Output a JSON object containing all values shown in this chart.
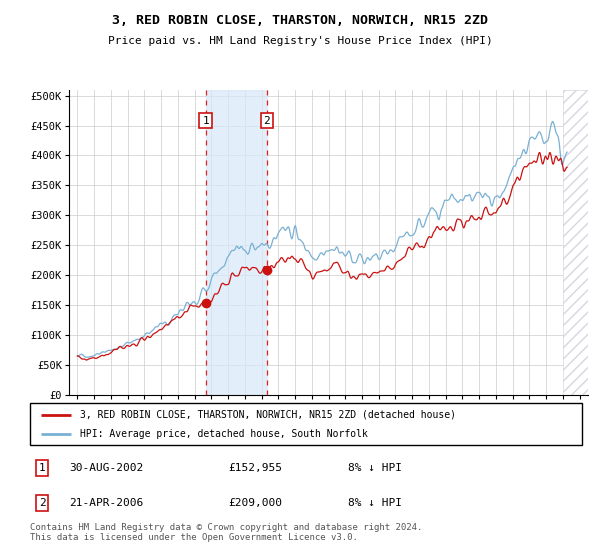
{
  "title": "3, RED ROBIN CLOSE, THARSTON, NORWICH, NR15 2ZD",
  "subtitle": "Price paid vs. HM Land Registry's House Price Index (HPI)",
  "yticks": [
    0,
    50000,
    100000,
    150000,
    200000,
    250000,
    300000,
    350000,
    400000,
    450000,
    500000
  ],
  "ytick_labels": [
    "£0",
    "£50K",
    "£100K",
    "£150K",
    "£200K",
    "£250K",
    "£300K",
    "£350K",
    "£400K",
    "£450K",
    "£500K"
  ],
  "xlim_start": 1994.5,
  "xlim_end": 2025.5,
  "ylim_max": 510000,
  "transaction1_date": 2002.66,
  "transaction1_price": 152955,
  "transaction2_date": 2006.31,
  "transaction2_price": 209000,
  "shade_color": "#d6e8f7",
  "shade_alpha": 0.7,
  "vline_color": "#dd2222",
  "hpi_line_color": "#7ab0d4",
  "price_line_color": "#cc1111",
  "legend_label_price": "3, RED ROBIN CLOSE, THARSTON, NORWICH, NR15 2ZD (detached house)",
  "legend_label_hpi": "HPI: Average price, detached house, South Norfolk",
  "footer": "Contains HM Land Registry data © Crown copyright and database right 2024.\nThis data is licensed under the Open Government Licence v3.0.",
  "xticks": [
    1995,
    1996,
    1997,
    1998,
    1999,
    2000,
    2001,
    2002,
    2003,
    2004,
    2005,
    2006,
    2007,
    2008,
    2009,
    2010,
    2011,
    2012,
    2013,
    2014,
    2015,
    2016,
    2017,
    2018,
    2019,
    2020,
    2021,
    2022,
    2023,
    2024,
    2025
  ],
  "hpi_keypoints": [
    [
      1995.0,
      68000
    ],
    [
      1995.5,
      65000
    ],
    [
      1996.0,
      67000
    ],
    [
      1996.5,
      70000
    ],
    [
      1997.0,
      75000
    ],
    [
      1997.5,
      83000
    ],
    [
      1998.0,
      88000
    ],
    [
      1998.5,
      92000
    ],
    [
      1999.0,
      97000
    ],
    [
      1999.5,
      107000
    ],
    [
      2000.0,
      118000
    ],
    [
      2000.5,
      128000
    ],
    [
      2001.0,
      138000
    ],
    [
      2001.5,
      152000
    ],
    [
      2002.0,
      162000
    ],
    [
      2002.5,
      177000
    ],
    [
      2003.0,
      192000
    ],
    [
      2003.5,
      210000
    ],
    [
      2004.0,
      228000
    ],
    [
      2004.5,
      245000
    ],
    [
      2005.0,
      248000
    ],
    [
      2005.5,
      247000
    ],
    [
      2006.0,
      252000
    ],
    [
      2006.5,
      260000
    ],
    [
      2007.0,
      270000
    ],
    [
      2007.5,
      273000
    ],
    [
      2008.0,
      268000
    ],
    [
      2008.5,
      250000
    ],
    [
      2009.0,
      233000
    ],
    [
      2009.5,
      228000
    ],
    [
      2010.0,
      240000
    ],
    [
      2010.5,
      244000
    ],
    [
      2011.0,
      237000
    ],
    [
      2011.5,
      232000
    ],
    [
      2012.0,
      228000
    ],
    [
      2012.5,
      225000
    ],
    [
      2013.0,
      228000
    ],
    [
      2013.5,
      235000
    ],
    [
      2014.0,
      248000
    ],
    [
      2014.5,
      262000
    ],
    [
      2015.0,
      275000
    ],
    [
      2015.5,
      288000
    ],
    [
      2016.0,
      300000
    ],
    [
      2016.5,
      310000
    ],
    [
      2017.0,
      318000
    ],
    [
      2017.5,
      325000
    ],
    [
      2018.0,
      328000
    ],
    [
      2018.5,
      330000
    ],
    [
      2019.0,
      332000
    ],
    [
      2019.5,
      335000
    ],
    [
      2020.0,
      337000
    ],
    [
      2020.5,
      348000
    ],
    [
      2021.0,
      368000
    ],
    [
      2021.5,
      395000
    ],
    [
      2022.0,
      420000
    ],
    [
      2022.5,
      437000
    ],
    [
      2023.0,
      440000
    ],
    [
      2023.5,
      430000
    ],
    [
      2024.0,
      418000
    ],
    [
      2024.25,
      415000
    ]
  ],
  "price_keypoints": [
    [
      1995.0,
      63000
    ],
    [
      1995.5,
      60000
    ],
    [
      1996.0,
      63000
    ],
    [
      1996.5,
      66000
    ],
    [
      1997.0,
      71000
    ],
    [
      1997.5,
      78000
    ],
    [
      1998.0,
      83000
    ],
    [
      1998.5,
      87000
    ],
    [
      1999.0,
      92000
    ],
    [
      1999.5,
      101000
    ],
    [
      2000.0,
      111000
    ],
    [
      2000.5,
      121000
    ],
    [
      2001.0,
      131000
    ],
    [
      2001.5,
      143000
    ],
    [
      2002.0,
      152000
    ],
    [
      2002.66,
      152955
    ],
    [
      2003.0,
      158000
    ],
    [
      2003.5,
      175000
    ],
    [
      2004.0,
      193000
    ],
    [
      2004.5,
      207000
    ],
    [
      2005.0,
      210000
    ],
    [
      2005.5,
      212000
    ],
    [
      2006.31,
      209000
    ],
    [
      2006.5,
      215000
    ],
    [
      2007.0,
      224000
    ],
    [
      2007.5,
      238000
    ],
    [
      2008.0,
      232000
    ],
    [
      2008.5,
      215000
    ],
    [
      2009.0,
      202000
    ],
    [
      2009.5,
      199000
    ],
    [
      2010.0,
      208000
    ],
    [
      2010.5,
      212000
    ],
    [
      2011.0,
      207000
    ],
    [
      2011.5,
      203000
    ],
    [
      2012.0,
      200000
    ],
    [
      2012.5,
      198000
    ],
    [
      2013.0,
      200000
    ],
    [
      2013.5,
      206000
    ],
    [
      2014.0,
      218000
    ],
    [
      2014.5,
      231000
    ],
    [
      2015.0,
      243000
    ],
    [
      2015.5,
      255000
    ],
    [
      2016.0,
      266000
    ],
    [
      2016.5,
      276000
    ],
    [
      2017.0,
      284000
    ],
    [
      2017.5,
      291000
    ],
    [
      2018.0,
      295000
    ],
    [
      2018.5,
      298000
    ],
    [
      2019.0,
      300000
    ],
    [
      2019.5,
      303000
    ],
    [
      2020.0,
      305000
    ],
    [
      2020.5,
      317000
    ],
    [
      2021.0,
      337000
    ],
    [
      2021.5,
      363000
    ],
    [
      2022.0,
      387000
    ],
    [
      2022.5,
      400000
    ],
    [
      2023.0,
      402000
    ],
    [
      2023.5,
      392000
    ],
    [
      2024.0,
      383000
    ],
    [
      2024.25,
      380000
    ]
  ]
}
